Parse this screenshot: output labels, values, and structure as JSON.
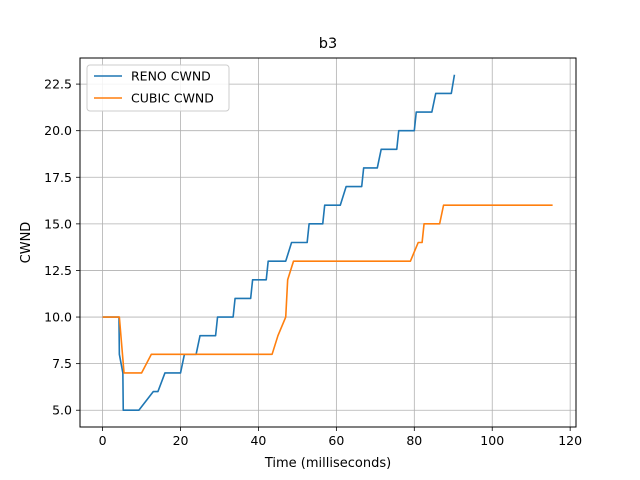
{
  "chart_data": {
    "type": "line",
    "title": "b3",
    "xlabel": "Time (milliseconds)",
    "ylabel": "CWND",
    "xlim": [
      -5.8,
      121.5
    ],
    "ylim": [
      4.1,
      23.9
    ],
    "xticks": [
      0,
      20,
      40,
      60,
      80,
      100,
      120
    ],
    "yticks": [
      5.0,
      7.5,
      10.0,
      12.5,
      15.0,
      17.5,
      20.0,
      22.5
    ],
    "xtick_labels": [
      "0",
      "20",
      "40",
      "60",
      "80",
      "100",
      "120"
    ],
    "ytick_labels": [
      "5.0",
      "7.5",
      "10.0",
      "12.5",
      "15.0",
      "17.5",
      "20.0",
      "22.5"
    ],
    "grid": true,
    "legend": "top-left",
    "series": [
      {
        "name": "RENO CWND",
        "color": "#1f77b4",
        "points": [
          [
            0,
            10
          ],
          [
            4.2,
            10
          ],
          [
            4.3,
            8
          ],
          [
            5.2,
            7
          ],
          [
            5.3,
            5
          ],
          [
            9.3,
            5
          ],
          [
            13,
            6
          ],
          [
            14.2,
            6
          ],
          [
            16,
            7
          ],
          [
            20,
            7
          ],
          [
            21,
            8
          ],
          [
            24,
            8
          ],
          [
            25,
            9
          ],
          [
            29,
            9
          ],
          [
            29.5,
            10
          ],
          [
            33.5,
            10
          ],
          [
            34,
            11
          ],
          [
            38,
            11
          ],
          [
            38.5,
            12
          ],
          [
            42,
            12
          ],
          [
            42.5,
            13
          ],
          [
            47,
            13
          ],
          [
            48.5,
            14
          ],
          [
            52.5,
            14
          ],
          [
            53,
            15
          ],
          [
            56.5,
            15
          ],
          [
            57,
            16
          ],
          [
            61,
            16
          ],
          [
            62.5,
            17
          ],
          [
            66.5,
            17
          ],
          [
            67,
            18
          ],
          [
            70.5,
            18
          ],
          [
            71.5,
            19
          ],
          [
            75.5,
            19
          ],
          [
            76,
            20
          ],
          [
            80,
            20
          ],
          [
            80.5,
            21
          ],
          [
            84.5,
            21
          ],
          [
            85.5,
            22
          ],
          [
            89.5,
            22
          ],
          [
            90.3,
            23
          ]
        ]
      },
      {
        "name": "CUBIC CWND",
        "color": "#ff7f0e",
        "points": [
          [
            0,
            10
          ],
          [
            4.3,
            10
          ],
          [
            5.5,
            7
          ],
          [
            10,
            7
          ],
          [
            12.5,
            8
          ],
          [
            43.5,
            8
          ],
          [
            45,
            9
          ],
          [
            47,
            10
          ],
          [
            47.5,
            12
          ],
          [
            49,
            13
          ],
          [
            79,
            13
          ],
          [
            81,
            14
          ],
          [
            82,
            14
          ],
          [
            82.5,
            15
          ],
          [
            86.5,
            15
          ],
          [
            87.5,
            16
          ],
          [
            115.5,
            16
          ]
        ]
      }
    ]
  }
}
